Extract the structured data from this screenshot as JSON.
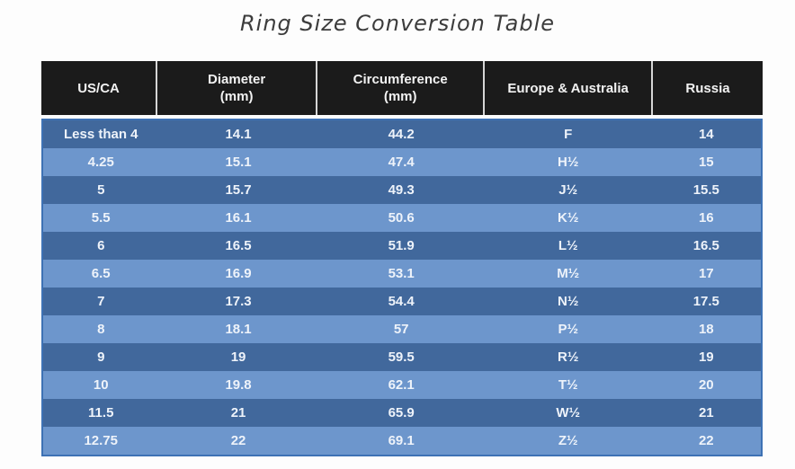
{
  "title": "Ring Size Conversion Table",
  "colors": {
    "page_bg": "#fdfdfd",
    "title_text": "#3c3c3c",
    "header_bg": "#1b1b1b",
    "header_text": "#f2f2f2",
    "header_divider": "#d6d6d6",
    "row_dark": "#41689c",
    "row_light": "#6d96cc",
    "body_border": "#3e72b4",
    "body_text": "#eef3fa"
  },
  "chart_data": {
    "type": "table",
    "title": "Ring Size Conversion Table",
    "columns": [
      {
        "label": "US/CA",
        "unit": ""
      },
      {
        "label": "Diameter",
        "unit": "(mm)"
      },
      {
        "label": "Circumference",
        "unit": "(mm)"
      },
      {
        "label": "Europe & Australia",
        "unit": ""
      },
      {
        "label": "Russia",
        "unit": ""
      }
    ],
    "rows": [
      [
        "Less than 4",
        "14.1",
        "44.2",
        "F",
        "14"
      ],
      [
        "4.25",
        "15.1",
        "47.4",
        "H½",
        "15"
      ],
      [
        "5",
        "15.7",
        "49.3",
        "J½",
        "15.5"
      ],
      [
        "5.5",
        "16.1",
        "50.6",
        "K½",
        "16"
      ],
      [
        "6",
        "16.5",
        "51.9",
        "L½",
        "16.5"
      ],
      [
        "6.5",
        "16.9",
        "53.1",
        "M½",
        "17"
      ],
      [
        "7",
        "17.3",
        "54.4",
        "N½",
        "17.5"
      ],
      [
        "8",
        "18.1",
        "57",
        "P½",
        "18"
      ],
      [
        "9",
        "19",
        "59.5",
        "R½",
        "19"
      ],
      [
        "10",
        "19.8",
        "62.1",
        "T½",
        "20"
      ],
      [
        "11.5",
        "21",
        "65.9",
        "W½",
        "21"
      ],
      [
        "12.75",
        "22",
        "69.1",
        "Z½",
        "22"
      ]
    ]
  }
}
